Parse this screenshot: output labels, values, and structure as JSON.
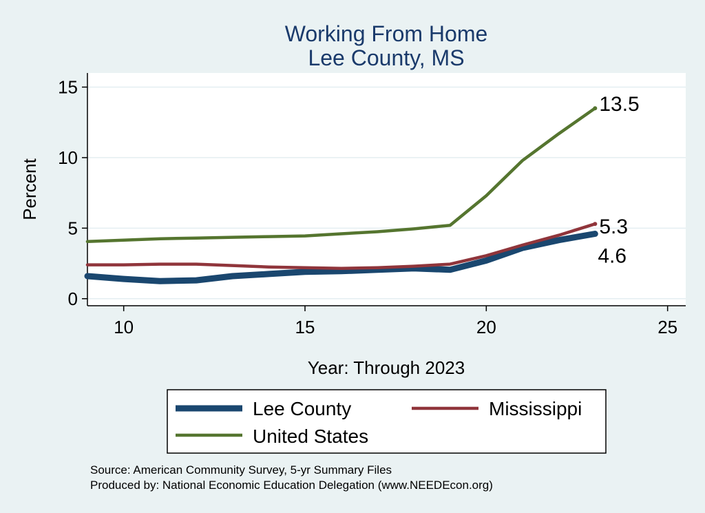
{
  "chart_data": {
    "type": "line",
    "title": [
      "Working From Home",
      "Lee County, MS"
    ],
    "xlabel": "Year: Through 2023",
    "ylabel": "Percent",
    "xlim": [
      9,
      25.5
    ],
    "ylim": [
      -0.5,
      16
    ],
    "xticks": [
      10,
      15,
      20,
      25
    ],
    "yticks": [
      0,
      5,
      10,
      15
    ],
    "grid": true,
    "legend_position": "bottom",
    "series": [
      {
        "name": "Lee County",
        "color": "#1a476f",
        "width": "thick",
        "x": [
          9,
          10,
          11,
          12,
          13,
          14,
          15,
          16,
          17,
          18,
          19,
          20,
          21,
          22,
          23
        ],
        "y": [
          1.6,
          1.4,
          1.25,
          1.3,
          1.6,
          1.75,
          1.9,
          1.95,
          2.05,
          2.15,
          2.05,
          2.7,
          3.6,
          4.15,
          4.6
        ],
        "end_label": "4.6"
      },
      {
        "name": "Mississippi",
        "color": "#90353b",
        "width": "medium",
        "x": [
          9,
          10,
          11,
          12,
          13,
          14,
          15,
          16,
          17,
          18,
          19,
          20,
          21,
          22,
          23
        ],
        "y": [
          2.4,
          2.4,
          2.45,
          2.45,
          2.35,
          2.25,
          2.2,
          2.15,
          2.2,
          2.3,
          2.45,
          3.05,
          3.8,
          4.5,
          5.3
        ],
        "end_label": "5.3"
      },
      {
        "name": "United States",
        "color": "#55752f",
        "width": "medium",
        "x": [
          9,
          10,
          11,
          12,
          13,
          14,
          15,
          16,
          17,
          18,
          19,
          20,
          21,
          22,
          23
        ],
        "y": [
          4.05,
          4.15,
          4.25,
          4.3,
          4.35,
          4.4,
          4.45,
          4.6,
          4.75,
          4.95,
          5.2,
          7.3,
          9.8,
          11.7,
          13.5
        ],
        "end_label": "13.5"
      }
    ]
  },
  "source_lines": [
    "Source: American Community Survey, 5-yr Summary Files",
    "Produced by: National Economic Education Delegation (www.NEEDEcon.org)"
  ]
}
